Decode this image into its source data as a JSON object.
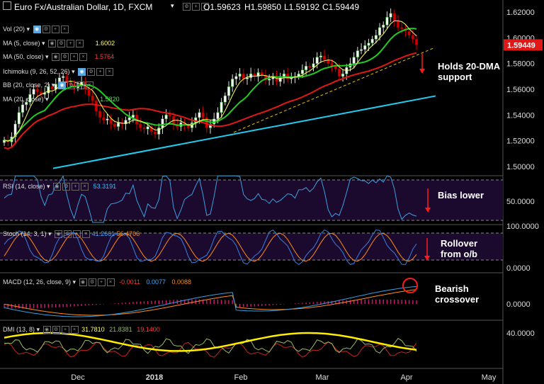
{
  "header": {
    "symbol": "Euro Fx/Australian Dollar, 1D, FXCM",
    "open": "O1.59623",
    "high": "H1.59850",
    "low": "L1.59192",
    "close": "C1.59449"
  },
  "indicators": {
    "vol": "Vol (20)",
    "ma5": "MA (5, close)",
    "ma5_value": "1.6002",
    "ma50": "MA (50, close)",
    "ma50_value": "1.5764",
    "ichimoku": "Ichimoku (9, 26, 52, 26)",
    "bb": "BB (20, close, 2)",
    "ma20": "MA (20, close)",
    "ma20_value": "1.5820",
    "rsi": "RSI (14, close)",
    "rsi_value": "53.3191",
    "stoch": "Stoch (14, 3, 1)",
    "stoch_k": "41.2661",
    "stoch_d": "56.4706",
    "macd": "MACD (12, 26, close, 9)",
    "macd_hist": "-0.0011",
    "macd_line": "0.0077",
    "macd_signal": "0.0088",
    "dmi": "DMI (13, 8)",
    "dmi_adx": "31.7810",
    "dmi_plus": "21.8381",
    "dmi_minus": "19.1400"
  },
  "annotations": {
    "support": "Holds 20-DMA\nsupport",
    "rsi": "Bias lower",
    "stoch": "Rollover\nfrom o/b",
    "macd": "Bearish\ncrossover"
  },
  "colors": {
    "background": "#000000",
    "bull_candle": "#ffffff",
    "bear_candle": "#cc0000",
    "ma5": "#ffff66",
    "ma20": "#22cc22",
    "ma50": "#e01818",
    "trendline": "#22ccee",
    "dashed_trend": "#e6c100",
    "rsi_line": "#3aa0e0",
    "stoch_k": "#3a7fe0",
    "stoch_d": "#ff8c1a",
    "macd_line": "#3a9fe0",
    "macd_signal": "#ff8c1a",
    "macd_hist": "#c8196e",
    "dmi_adx": "#ffee00",
    "dmi_plus": "#99bb66",
    "dmi_minus": "#cc2222",
    "price_marker": "#e01818"
  },
  "chart_data": {
    "type": "candlestick",
    "title": "Euro Fx/Australian Dollar, 1D, FXCM",
    "x_axis": {
      "ticks": [
        "Dec",
        "2018",
        "Feb",
        "Mar",
        "Apr",
        "May"
      ]
    },
    "panels": [
      {
        "name": "price",
        "yticks": [
          "1.62000",
          "1.60000",
          "1.58000",
          "1.56000",
          "1.54000",
          "1.52000",
          "1.50000"
        ],
        "ylim": [
          1.495,
          1.625
        ],
        "last_price": "1.59449"
      },
      {
        "name": "rsi",
        "yticks": [
          "50.0000"
        ],
        "value": 53.3191
      },
      {
        "name": "stoch",
        "yticks": [
          "100.0000",
          "0.0000"
        ]
      },
      {
        "name": "macd",
        "yticks": [
          "0.0000"
        ]
      },
      {
        "name": "dmi",
        "yticks": [
          "40.0000"
        ]
      }
    ],
    "price_series": [
      1.5205,
      1.519,
      1.523,
      1.533,
      1.542,
      1.548,
      1.55,
      1.556,
      1.56,
      1.558,
      1.556,
      1.557,
      1.562,
      1.56,
      1.564,
      1.569,
      1.57,
      1.565,
      1.564,
      1.561,
      1.563,
      1.566,
      1.56,
      1.555,
      1.551,
      1.543,
      1.538,
      1.536,
      1.537,
      1.533,
      1.531,
      1.534,
      1.533,
      1.536,
      1.538,
      1.54,
      1.533,
      1.53,
      1.529,
      1.531,
      1.527,
      1.525,
      1.53,
      1.537,
      1.54,
      1.539,
      1.533,
      1.531,
      1.534,
      1.532,
      1.53,
      1.534,
      1.538,
      1.542,
      1.538,
      1.53,
      1.533,
      1.537,
      1.542,
      1.55,
      1.555,
      1.562,
      1.568,
      1.57,
      1.572,
      1.568,
      1.569,
      1.572,
      1.57,
      1.573,
      1.571,
      1.567,
      1.568,
      1.57,
      1.566,
      1.569,
      1.572,
      1.568,
      1.569,
      1.57,
      1.572,
      1.575,
      1.578,
      1.577,
      1.58,
      1.585,
      1.586,
      1.583,
      1.58,
      1.578,
      1.576,
      1.57,
      1.572,
      1.577,
      1.58,
      1.585,
      1.59,
      1.591,
      1.594,
      1.596,
      1.599,
      1.602,
      1.608,
      1.61,
      1.616,
      1.619,
      1.613,
      1.608,
      1.607,
      1.605,
      1.602,
      1.599,
      1.5945
    ]
  }
}
